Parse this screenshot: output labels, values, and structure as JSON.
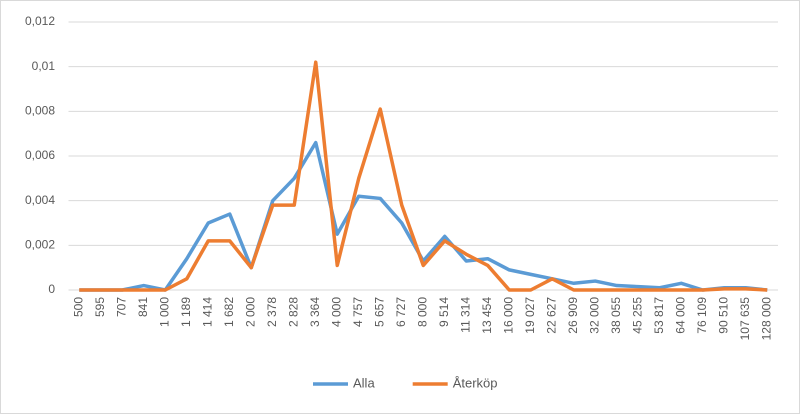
{
  "chart_data": {
    "type": "line",
    "categories": [
      "500",
      "595",
      "707",
      "841",
      "1 000",
      "1 189",
      "1 414",
      "1 682",
      "2 000",
      "2 378",
      "2 828",
      "3 364",
      "4 000",
      "4 757",
      "5 657",
      "6 727",
      "8 000",
      "9 514",
      "11 314",
      "13 454",
      "16 000",
      "19 027",
      "22 627",
      "26 909",
      "32 000",
      "38 055",
      "45 255",
      "53 817",
      "64 000",
      "76 109",
      "90 510",
      "107 635",
      "128 000"
    ],
    "series": [
      {
        "name": "Alla",
        "color": "#5b9bd5",
        "values": [
          0,
          0,
          0,
          0.0002,
          0,
          0.0014,
          0.003,
          0.0034,
          0.001,
          0.004,
          0.005,
          0.0066,
          0.0025,
          0.0042,
          0.0041,
          0.003,
          0.0013,
          0.0024,
          0.0013,
          0.0014,
          0.0009,
          0.0007,
          0.0005,
          0.0003,
          0.0004,
          0.0002,
          0.00015,
          0.0001,
          0.0003,
          0,
          0.0001,
          0.0001,
          0
        ]
      },
      {
        "name": "Återköp",
        "color": "#ed7d31",
        "values": [
          0,
          0,
          0,
          0,
          0,
          0.0005,
          0.0022,
          0.0022,
          0.001,
          0.0038,
          0.0038,
          0.0102,
          0.0011,
          0.005,
          0.0081,
          0.0038,
          0.0011,
          0.0022,
          0.0016,
          0.0011,
          0,
          0,
          0.0005,
          0,
          0,
          0,
          0,
          0,
          0,
          0,
          5e-05,
          5e-05,
          0
        ]
      }
    ],
    "ylim": [
      0,
      0.012
    ],
    "yticks": [
      0,
      {
        "value": 0.002,
        "label": "0,002"
      },
      {
        "value": 0.004,
        "label": "0,004"
      },
      {
        "value": 0.006,
        "label": "0,006"
      },
      {
        "value": 0.008,
        "label": "0,008"
      },
      {
        "value": 0.01,
        "label": "0,01"
      },
      {
        "value": 0.012,
        "label": "0,012"
      }
    ],
    "grid": true,
    "legend": "bottom"
  }
}
